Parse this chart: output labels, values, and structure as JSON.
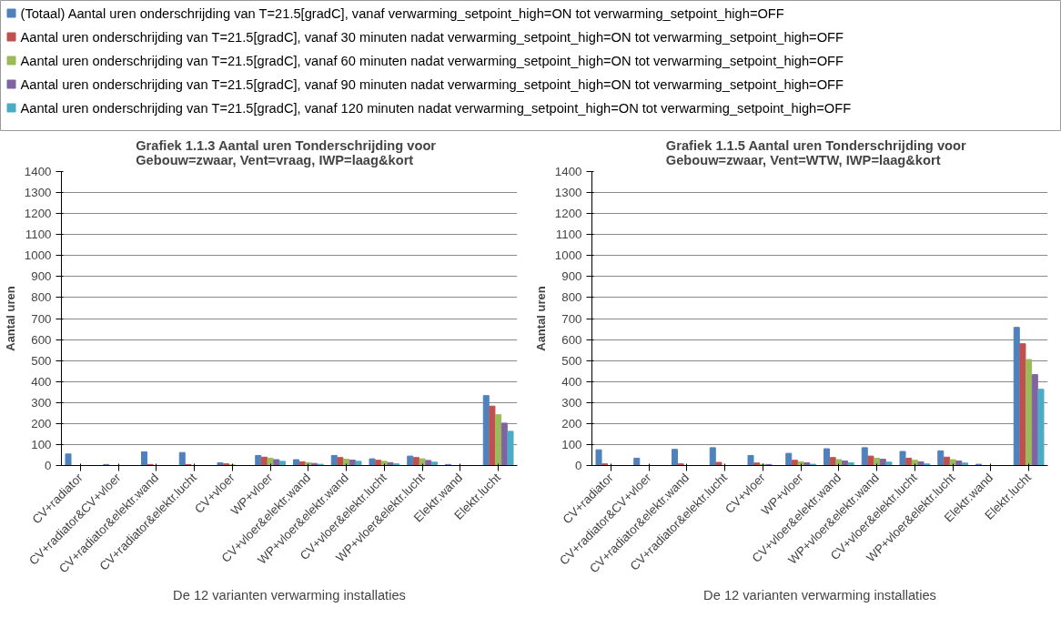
{
  "chart_data": [
    {
      "type": "bar",
      "title": "Grafiek 1.1.3 Aantal uren Tonderschrijding voor\nGebouw=zwaar,     Vent=vraag,     IWP=laag&kort",
      "xlabel": "De 12 varianten verwarming installaties",
      "ylabel": "Aantal uren",
      "categories": [
        "CV+radiator",
        "CV+radiator&CV+vloer",
        "CV+radiator&elektr.wand",
        "CV+radiator&elektr.lucht",
        "CV+vloer",
        "WP+vloer",
        "CV+vloer&elektr.wand",
        "WP+vloer&elektr.wand",
        "CV+vloer&elektr.lucht",
        "WP+vloer&elektr.lucht",
        "Elektr.wand",
        "Elektr.lucht"
      ],
      "ylim": [
        0,
        1400
      ],
      "yticks": [
        0,
        100,
        200,
        300,
        400,
        500,
        600,
        700,
        800,
        900,
        1000,
        1100,
        1200,
        1300,
        1400
      ],
      "grid": "y",
      "legend": "top",
      "series": [
        {
          "name": "(Totaal) Aantal uren onderschrijding van T=21.5[gradC], vanaf verwarming_setpoint_high=ON tot verwarming_setpoint_high=OFF",
          "color": "#4f81bd",
          "values": [
            55,
            5,
            65,
            62,
            13,
            48,
            28,
            48,
            32,
            45,
            5,
            333
          ]
        },
        {
          "name": "Aantal uren onderschrijding van T=21.5[gradC], vanaf 30 minuten nadat verwarming_setpoint_high=ON tot verwarming_setpoint_high=OFF",
          "color": "#c0504d",
          "values": [
            0,
            0,
            5,
            5,
            8,
            40,
            18,
            38,
            25,
            38,
            0,
            283
          ]
        },
        {
          "name": "Aantal uren onderschrijding van T=21.5[gradC], vanaf 60 minuten nadat verwarming_setpoint_high=ON tot verwarming_setpoint_high=OFF",
          "color": "#9bbb59",
          "values": [
            0,
            0,
            0,
            0,
            3,
            35,
            14,
            30,
            20,
            32,
            0,
            242
          ]
        },
        {
          "name": "Aantal uren onderschrijding van T=21.5[gradC], vanaf 90 minuten nadat verwarming_setpoint_high=ON tot verwarming_setpoint_high=OFF",
          "color": "#8064a2",
          "values": [
            0,
            0,
            0,
            0,
            null,
            28,
            10,
            26,
            14,
            24,
            0,
            202
          ]
        },
        {
          "name": "Aantal uren onderschrijding van T=21.5[gradC], vanaf 120 minuten nadat verwarming_setpoint_high=ON tot verwarming_setpoint_high=OFF",
          "color": "#4bacc6",
          "values": [
            0,
            0,
            0,
            0,
            0,
            20,
            6,
            20,
            8,
            16,
            0,
            163
          ]
        }
      ]
    },
    {
      "type": "bar",
      "title": "Grafiek 1.1.5 Aantal uren Tonderschrijding voor\nGebouw=zwaar,     Vent=WTW,      IWP=laag&kort",
      "xlabel": "De 12 varianten verwarming installaties",
      "ylabel": "Aantal uren",
      "categories": [
        "CV+radiator",
        "CV+radiator&CV+vloer",
        "CV+radiator&elektr.wand",
        "CV+radiator&elektr.lucht",
        "CV+vloer",
        "WP+vloer",
        "CV+vloer&elektr.wand",
        "WP+vloer&elektr.wand",
        "CV+vloer&elektr.lucht",
        "WP+vloer&elektr.lucht",
        "Elektr.wand",
        "Elektr.lucht"
      ],
      "ylim": [
        0,
        1400
      ],
      "yticks": [
        0,
        100,
        200,
        300,
        400,
        500,
        600,
        700,
        800,
        900,
        1000,
        1100,
        1200,
        1300,
        1400
      ],
      "grid": "y",
      "series": [
        {
          "color": "#4f81bd",
          "values": [
            75,
            35,
            77,
            85,
            48,
            58,
            80,
            85,
            67,
            70,
            6,
            658
          ]
        },
        {
          "color": "#c0504d",
          "values": [
            8,
            0,
            8,
            15,
            12,
            25,
            38,
            45,
            35,
            40,
            0,
            580
          ]
        },
        {
          "color": "#9bbb59",
          "values": [
            0,
            0,
            0,
            0,
            6,
            18,
            28,
            35,
            25,
            28,
            0,
            505
          ]
        },
        {
          "color": "#8064a2",
          "values": [
            0,
            0,
            0,
            0,
            5,
            13,
            22,
            30,
            18,
            22,
            0,
            433
          ]
        },
        {
          "color": "#4bacc6",
          "values": [
            0,
            0,
            0,
            0,
            0,
            6,
            13,
            16,
            8,
            12,
            0,
            363
          ]
        }
      ]
    }
  ]
}
